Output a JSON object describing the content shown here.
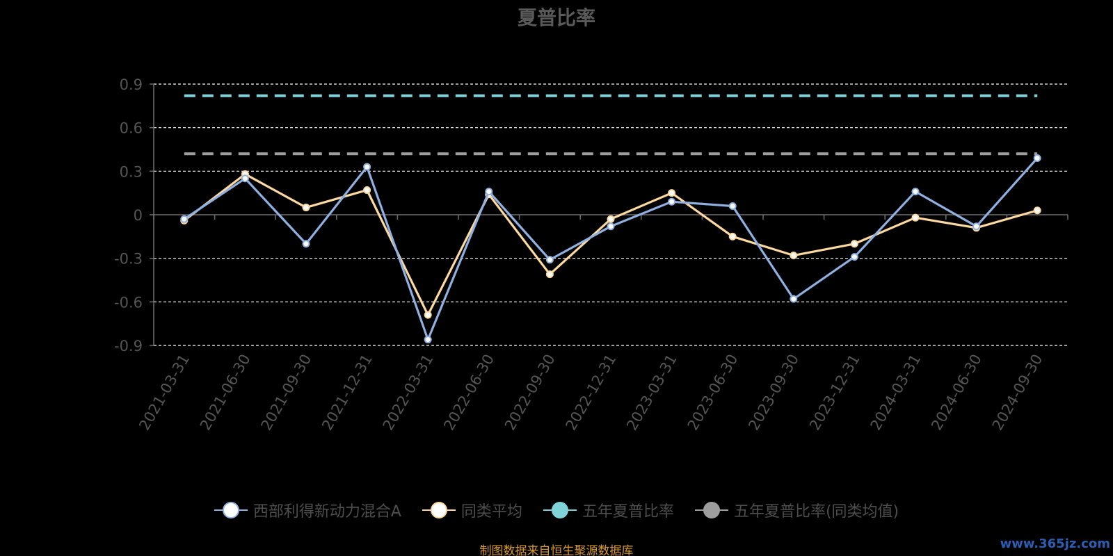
{
  "chart_data": {
    "type": "line",
    "title": "夏普比率",
    "categories": [
      "2021-03-31",
      "2021-06-30",
      "2021-09-30",
      "2021-12-31",
      "2022-03-31",
      "2022-06-30",
      "2022-09-30",
      "2022-12-31",
      "2023-03-31",
      "2023-06-30",
      "2023-09-30",
      "2023-12-31",
      "2024-03-31",
      "2024-06-30",
      "2024-09-30"
    ],
    "yticks": [
      "0.9",
      "0.6",
      "0.3",
      "0",
      "-0.3",
      "-0.6",
      "-0.9"
    ],
    "ytick_values": [
      0.9,
      0.6,
      0.3,
      0,
      -0.3,
      -0.6,
      -0.9
    ],
    "ylim": [
      -0.9,
      0.9
    ],
    "grid": true,
    "legend_position": "bottom",
    "series": [
      {
        "name": "西部利得新动力混合A",
        "color": "#8fb0e0",
        "marker_fill": "#ffffff",
        "style": "line",
        "values": [
          -0.03,
          0.25,
          -0.2,
          0.33,
          -0.86,
          0.16,
          -0.31,
          -0.08,
          0.09,
          0.06,
          -0.58,
          -0.29,
          0.16,
          -0.08,
          0.39
        ]
      },
      {
        "name": "同类平均",
        "color": "#fcd9a1",
        "marker_fill": "#ffffff",
        "style": "line",
        "values": [
          -0.04,
          0.28,
          0.05,
          0.17,
          -0.69,
          0.14,
          -0.41,
          -0.03,
          0.15,
          -0.15,
          -0.28,
          -0.2,
          -0.02,
          -0.09,
          0.03
        ]
      },
      {
        "name": "五年夏普比率",
        "color": "#7fd3d9",
        "marker_fill": "#7fd3d9",
        "style": "dashed",
        "values": [
          0.82,
          0.82,
          0.82,
          0.82,
          0.82,
          0.82,
          0.82,
          0.82,
          0.82,
          0.82,
          0.82,
          0.82,
          0.82,
          0.82,
          0.82
        ]
      },
      {
        "name": "五年夏普比率(同类均值)",
        "color": "#9e9e9e",
        "marker_fill": "#9e9e9e",
        "style": "dashed",
        "values": [
          0.42,
          0.42,
          0.42,
          0.42,
          0.42,
          0.42,
          0.42,
          0.42,
          0.42,
          0.42,
          0.42,
          0.42,
          0.42,
          0.42,
          0.42
        ]
      }
    ]
  },
  "colors": {
    "background": "#000000",
    "grid": "#ffffff",
    "axis": "#6e6e6e",
    "tick_label": "#555555",
    "title": "#5a5a5a",
    "legend_text": "#4e4e4e",
    "source": "#d89a2a",
    "watermark": "#2b5fb3"
  },
  "source_text": "制图数据来自恒生聚源数据库",
  "watermark_text": "www.365jz.com"
}
